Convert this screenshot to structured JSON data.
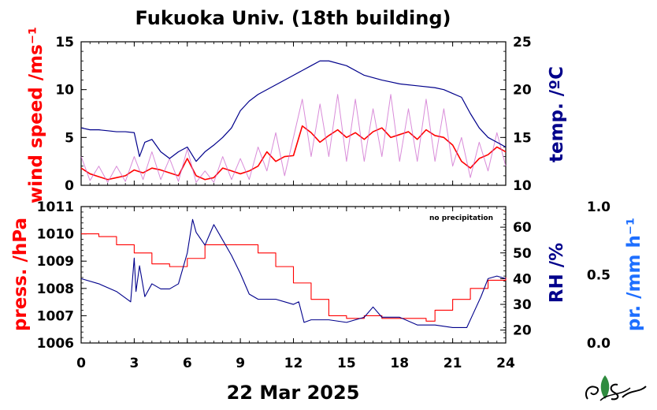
{
  "colors": {
    "wind": "#ff0000",
    "wind_raw": "#cc66cc",
    "temp": "#00008b",
    "press": "#ff0000",
    "rh": "#00008b",
    "precip": "#1e6fff",
    "axes": "#000000",
    "logo_green": "#2e8b3e"
  },
  "header": {
    "title": "Fukuoka Univ. (18th building)",
    "date": "22 Mar 2025"
  },
  "chart_data": [
    {
      "type": "line",
      "panel": "top",
      "xlim": [
        0,
        24
      ],
      "xticks": [
        "0",
        "3",
        "6",
        "9",
        "12",
        "15",
        "18",
        "21",
        "24"
      ],
      "left_axis": {
        "label": "wind speed /ms⁻¹",
        "ylim": [
          0,
          15
        ],
        "ticks": [
          "0",
          "5",
          "10",
          "15"
        ]
      },
      "right_axis": {
        "label": "temp. /ºC",
        "ylim": [
          10,
          25
        ],
        "ticks": [
          "10",
          "15",
          "20",
          "25"
        ]
      },
      "series": [
        {
          "axis": "left",
          "style": "smoothed",
          "x": [
            0,
            0.5,
            1,
            1.5,
            2,
            2.5,
            3,
            3.5,
            4,
            4.5,
            5,
            5.5,
            6,
            6.5,
            7,
            7.5,
            8,
            8.5,
            9,
            9.5,
            10,
            10.5,
            11,
            11.5,
            12,
            12.5,
            13,
            13.5,
            14,
            14.5,
            15,
            15.5,
            16,
            16.5,
            17,
            17.5,
            18,
            18.5,
            19,
            19.5,
            20,
            20.5,
            21,
            21.5,
            22,
            22.5,
            23,
            23.5,
            24
          ],
          "values": [
            1.8,
            1.2,
            0.9,
            0.6,
            0.8,
            1.0,
            1.6,
            1.3,
            1.8,
            1.6,
            1.3,
            1.0,
            2.8,
            1.0,
            0.6,
            0.8,
            1.8,
            1.5,
            1.2,
            1.5,
            2.0,
            3.5,
            2.5,
            3.0,
            3.1,
            6.2,
            5.5,
            4.5,
            5.2,
            5.8,
            5.0,
            5.5,
            4.8,
            5.6,
            6.0,
            5.0,
            5.3,
            5.6,
            4.8,
            5.8,
            5.2,
            5.0,
            4.2,
            2.5,
            1.8,
            2.8,
            3.2,
            4.0,
            3.5
          ]
        },
        {
          "axis": "left",
          "style": "raw",
          "x": [
            0,
            0.5,
            1,
            1.5,
            2,
            2.5,
            3,
            3.5,
            4,
            4.5,
            5,
            5.5,
            6,
            6.5,
            7,
            7.5,
            8,
            8.5,
            9,
            9.5,
            10,
            10.5,
            11,
            11.5,
            12,
            12.5,
            13,
            13.5,
            14,
            14.5,
            15,
            15.5,
            16,
            16.5,
            17,
            17.5,
            18,
            18.5,
            19,
            19.5,
            20,
            20.5,
            21,
            21.5,
            22,
            22.5,
            23,
            23.5,
            24
          ],
          "values": [
            3.0,
            0.5,
            2.0,
            0.3,
            2.0,
            0.4,
            3.0,
            0.6,
            3.5,
            0.6,
            2.8,
            0.4,
            3.8,
            0.3,
            1.5,
            0.3,
            3.0,
            0.6,
            2.8,
            0.6,
            4.0,
            1.5,
            5.5,
            1.0,
            5.0,
            9.0,
            3.0,
            8.5,
            3.0,
            9.5,
            2.5,
            9.0,
            2.5,
            8.0,
            3.0,
            9.5,
            2.5,
            8.0,
            2.5,
            9.0,
            2.5,
            8.0,
            2.0,
            5.0,
            0.8,
            4.5,
            1.5,
            5.5,
            2.0
          ]
        },
        {
          "axis": "right",
          "x": [
            0,
            0.5,
            1,
            1.5,
            2,
            2.5,
            3,
            3.3,
            3.6,
            4,
            4.5,
            5,
            5.5,
            6,
            6.5,
            7,
            7.5,
            8,
            8.5,
            9,
            9.5,
            10,
            11,
            12,
            13,
            13.5,
            14,
            15,
            16,
            17,
            17.5,
            18,
            19,
            20,
            20.5,
            21,
            21.5,
            22,
            22.5,
            23,
            23.5,
            24
          ],
          "values": [
            16.0,
            15.8,
            15.8,
            15.7,
            15.6,
            15.6,
            15.5,
            13.0,
            14.5,
            14.8,
            13.5,
            12.8,
            13.5,
            14.0,
            12.5,
            13.5,
            14.2,
            15.0,
            16.0,
            17.8,
            18.8,
            19.5,
            20.5,
            21.5,
            22.5,
            23.0,
            23.0,
            22.5,
            21.5,
            21.0,
            20.8,
            20.6,
            20.4,
            20.2,
            20.0,
            19.6,
            19.2,
            17.5,
            16.0,
            15.0,
            14.5,
            14.0
          ]
        }
      ]
    },
    {
      "type": "line",
      "panel": "bottom",
      "xlim": [
        0,
        24
      ],
      "xticks": [
        "0",
        "3",
        "6",
        "9",
        "12",
        "15",
        "18",
        "21",
        "24"
      ],
      "xlabel": "22 Mar 2025",
      "annotation": "no precipitation",
      "left_axis": {
        "label": "press. /hPa",
        "ylim": [
          1006,
          1011
        ],
        "ticks": [
          "1006",
          "1007",
          "1008",
          "1009",
          "1010",
          "1011"
        ]
      },
      "right_axis": {
        "label": "RH /%",
        "ylim": [
          15,
          68
        ],
        "ticks": [
          "20",
          "30",
          "40",
          "50",
          "60"
        ]
      },
      "extra_axis": {
        "label": "pr. /mm h⁻¹",
        "ylim": [
          0,
          1
        ],
        "ticks": [
          "0.0",
          "0.5",
          "1.0"
        ]
      },
      "series": [
        {
          "axis": "left",
          "style": "step",
          "x": [
            0,
            1,
            2,
            3,
            4,
            5,
            6,
            7,
            8,
            9,
            9.5,
            10,
            11,
            12,
            13,
            14,
            15,
            16,
            17,
            18,
            19,
            19.5,
            20,
            21,
            22,
            23,
            24
          ],
          "values": [
            1010.0,
            1009.9,
            1009.6,
            1009.3,
            1008.9,
            1008.8,
            1009.1,
            1009.6,
            1009.6,
            1009.6,
            1009.6,
            1009.3,
            1008.8,
            1008.2,
            1007.6,
            1007.0,
            1006.9,
            1007.0,
            1006.9,
            1006.9,
            1006.9,
            1006.8,
            1007.2,
            1007.6,
            1008.0,
            1008.3,
            1008.4
          ]
        },
        {
          "axis": "right",
          "x": [
            0,
            1,
            2,
            2.8,
            3.0,
            3.1,
            3.3,
            3.6,
            4.0,
            4.5,
            5,
            5.5,
            6,
            6.3,
            6.5,
            7,
            7.5,
            8,
            8.5,
            9,
            9.5,
            10,
            11,
            12,
            12.3,
            12.6,
            13,
            14,
            15,
            16,
            16.5,
            17,
            18,
            19,
            20,
            21,
            21.8,
            22.2,
            22.6,
            23,
            23.5,
            24
          ],
          "values": [
            40,
            38,
            35,
            31,
            48,
            35,
            45,
            33,
            38,
            36,
            36,
            38,
            50,
            63,
            58,
            53,
            61,
            55,
            49,
            42,
            34,
            32,
            32,
            30,
            31,
            23,
            24,
            24,
            23,
            25,
            29,
            25,
            25,
            22,
            22,
            21,
            21,
            27,
            33,
            40,
            41,
            40
          ]
        }
      ]
    }
  ]
}
